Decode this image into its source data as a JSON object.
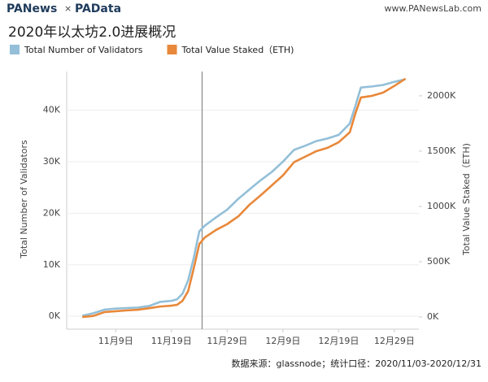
{
  "header": {
    "brand1": "PANews",
    "sep": "×",
    "brand2": "PAData",
    "site": "www.PANewsLab.com"
  },
  "footer": "数据来源：glassnode；统计口径：2020/11/03-2020/12/31",
  "chart_data": {
    "type": "line",
    "title": "2020年以太坊2.0进展概况",
    "y_label": "Total Number of Validators",
    "y2_label": "Total Value Staked（ETH)",
    "x": [
      0,
      2,
      4,
      6,
      8,
      10,
      12,
      14,
      16,
      17,
      18,
      19,
      20,
      21,
      22,
      24,
      26,
      28,
      30,
      32,
      34,
      36,
      38,
      40,
      42,
      44,
      46,
      48,
      49,
      50,
      52,
      54,
      56,
      58
    ],
    "xlim": [
      -2.8,
      60.4
    ],
    "xticks": [
      {
        "value": 6,
        "label": "11月9日"
      },
      {
        "value": 16,
        "label": "11月19日"
      },
      {
        "value": 26,
        "label": "11月29日"
      },
      {
        "value": 36,
        "label": "12月9日"
      },
      {
        "value": 46,
        "label": "12月19日"
      },
      {
        "value": 56,
        "label": "12月29日"
      }
    ],
    "reference_line_x": 21.5,
    "ylim": [
      -2500,
      47500
    ],
    "yticks": [
      {
        "value": 0,
        "label": "0K"
      },
      {
        "value": 10000,
        "label": "10K"
      },
      {
        "value": 20000,
        "label": "20K"
      },
      {
        "value": 30000,
        "label": "30K"
      },
      {
        "value": 40000,
        "label": "40K"
      }
    ],
    "y2lim": [
      -110000,
      2220000
    ],
    "y2ticks": [
      {
        "value": 0,
        "label": "0K"
      },
      {
        "value": 500000,
        "label": "500K"
      },
      {
        "value": 1000000,
        "label": "1000K"
      },
      {
        "value": 1500000,
        "label": "1500K"
      },
      {
        "value": 2000000,
        "label": "2000K"
      }
    ],
    "grid": true,
    "series": [
      {
        "name": "Total Number of Validators",
        "color": "#93bfd8",
        "values": [
          100,
          600,
          1300,
          1500,
          1600,
          1700,
          2000,
          2800,
          3000,
          3300,
          4400,
          7000,
          11300,
          16500,
          17600,
          19200,
          20700,
          22800,
          24600,
          26400,
          28000,
          30000,
          32300,
          33100,
          34000,
          34500,
          35200,
          37400,
          40800,
          44400,
          44600,
          44900,
          45500,
          46000
        ]
      },
      {
        "name": "Total Value Staked（ETH)",
        "color": "#e8883a",
        "axis": "y2",
        "values": [
          0,
          10000,
          45000,
          52000,
          60000,
          66000,
          80000,
          95000,
          103000,
          110000,
          147000,
          235000,
          440000,
          660000,
          720000,
          787000,
          840000,
          910000,
          1015000,
          1100000,
          1190000,
          1280000,
          1400000,
          1450000,
          1500000,
          1530000,
          1580000,
          1670000,
          1840000,
          1985000,
          2000000,
          2030000,
          2090000,
          2155000
        ]
      }
    ]
  }
}
